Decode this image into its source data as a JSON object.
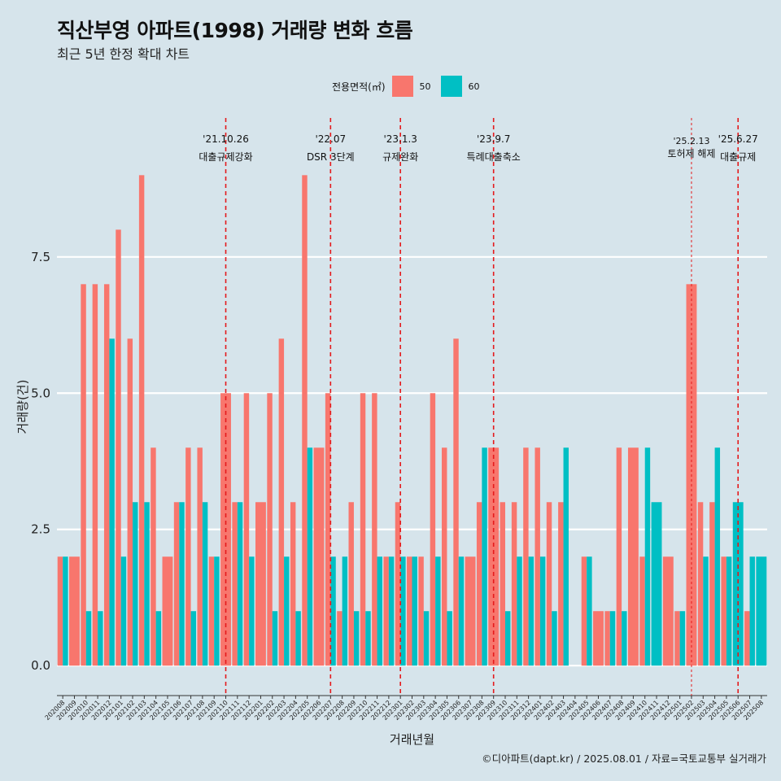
{
  "header": {
    "title": "직산부영 아파트(1998) 거래량 변화 흐름",
    "subtitle": "최근 5년 한정 확대 차트"
  },
  "legend": {
    "title": "전용면적(㎡)",
    "items": [
      {
        "label": "50",
        "color": "#F8766D"
      },
      {
        "label": "60",
        "color": "#00BFC4"
      }
    ]
  },
  "caption": "©디아파트(dapt.kr) / 2025.08.01 / 자료=국토교통부 실거래가",
  "chart_data": {
    "type": "bar",
    "xlabel": "거래년월",
    "ylabel": "거래량(건)",
    "ylim": [
      -0.4,
      10.05
    ],
    "yticks": [
      0.0,
      2.5,
      5.0,
      7.5
    ],
    "ytick_labels": [
      "0.0",
      "2.5",
      "5.0",
      "7.5"
    ],
    "categories": [
      "202008",
      "202009",
      "202010",
      "202011",
      "202012",
      "202101",
      "202102",
      "202103",
      "202104",
      "202105",
      "202106",
      "202107",
      "202108",
      "202109",
      "202110",
      "202111",
      "202112",
      "202201",
      "202202",
      "202203",
      "202204",
      "202205",
      "202206",
      "202207",
      "202208",
      "202209",
      "202210",
      "202211",
      "202212",
      "202301",
      "202302",
      "202303",
      "202304",
      "202305",
      "202306",
      "202307",
      "202308",
      "202309",
      "202310",
      "202311",
      "202312",
      "202401",
      "202402",
      "202403",
      "202404",
      "202405",
      "202406",
      "202407",
      "202408",
      "202409",
      "202410",
      "202411",
      "202412",
      "202501",
      "202502",
      "202503",
      "202504",
      "202505",
      "202506",
      "202507",
      "202508"
    ],
    "series": [
      {
        "name": "50",
        "color": "#F8766D",
        "values": [
          2,
          2,
          7,
          7,
          7,
          8,
          6,
          9,
          4,
          2,
          3,
          4,
          4,
          2,
          5,
          3,
          5,
          3,
          5,
          6,
          3,
          9,
          4,
          5,
          1,
          3,
          5,
          5,
          2,
          3,
          2,
          2,
          5,
          4,
          6,
          2,
          3,
          4,
          3,
          3,
          4,
          4,
          3,
          3,
          null,
          2,
          1,
          1,
          4,
          4,
          2,
          null,
          2,
          1,
          7,
          3,
          3,
          2,
          null,
          1,
          null
        ]
      },
      {
        "name": "60",
        "color": "#00BFC4",
        "values": [
          2,
          null,
          1,
          1,
          6,
          2,
          3,
          3,
          1,
          null,
          3,
          1,
          3,
          2,
          null,
          3,
          2,
          null,
          1,
          2,
          1,
          4,
          null,
          2,
          2,
          1,
          1,
          2,
          2,
          2,
          2,
          1,
          2,
          1,
          2,
          null,
          4,
          null,
          1,
          2,
          2,
          2,
          1,
          4,
          null,
          2,
          null,
          1,
          1,
          null,
          4,
          3,
          null,
          1,
          null,
          2,
          4,
          2,
          3,
          2,
          2
        ]
      }
    ],
    "annotations": [
      {
        "x": "202110",
        "date": "'21.10.26",
        "label": "대출규제강화",
        "emphasis": "major"
      },
      {
        "x": "202207",
        "date": "'22.07",
        "label": "DSR 3단계",
        "emphasis": "major"
      },
      {
        "x": "202301",
        "date": "'23.1.3",
        "label": "규제완화",
        "emphasis": "major"
      },
      {
        "x": "202309",
        "date": "'23.9.7",
        "label": "특례대출축소",
        "emphasis": "major"
      },
      {
        "x": "202502",
        "date": "'25.2.13",
        "label": "토허제 해제",
        "emphasis": "minor"
      },
      {
        "x": "202506",
        "date": "'25.6.27",
        "label": "대출규제",
        "emphasis": "major"
      }
    ]
  }
}
